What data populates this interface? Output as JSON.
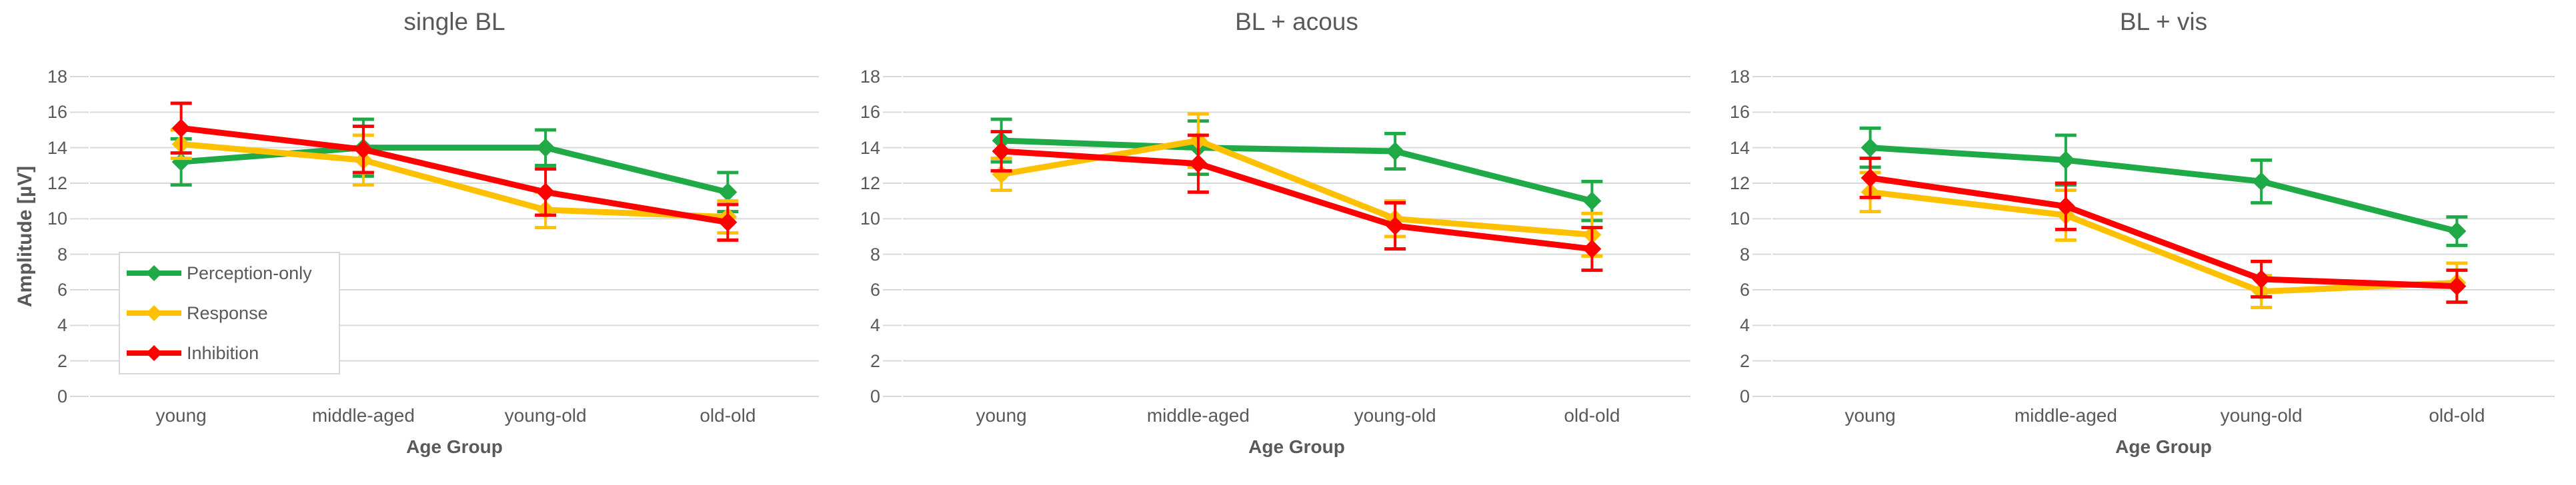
{
  "figure": {
    "background": "#ffffff",
    "text_color": "#595959",
    "gridline_color": "#D9D9D9"
  },
  "chart_data": [
    {
      "type": "line",
      "title": "single BL",
      "xlabel": "Age Group",
      "ylabel": "Amplitude [µV]",
      "categories": [
        "young",
        "middle-aged",
        "young-old",
        "old-old"
      ],
      "ylim": [
        0,
        18
      ],
      "yticks": [
        0,
        2,
        4,
        6,
        8,
        10,
        12,
        14,
        16,
        18
      ],
      "grid": true,
      "legend_position": "inside-left-bottom",
      "error_bars": true,
      "series": [
        {
          "name": "Perception-only",
          "color": "#1FAA47",
          "values": [
            13.2,
            14.0,
            14.0,
            11.5
          ],
          "errors": [
            1.3,
            1.6,
            1.0,
            1.1
          ]
        },
        {
          "name": "Response",
          "color": "#FFC000",
          "values": [
            14.2,
            13.3,
            10.5,
            10.1
          ],
          "errors": [
            0.8,
            1.4,
            1.0,
            0.9
          ]
        },
        {
          "name": "Inhibition",
          "color": "#FF0000",
          "values": [
            15.1,
            13.9,
            11.5,
            9.8
          ],
          "errors": [
            1.4,
            1.3,
            1.3,
            1.0
          ]
        }
      ]
    },
    {
      "type": "line",
      "title": "BL + acous",
      "xlabel": "Age Group",
      "ylabel": "",
      "categories": [
        "young",
        "middle-aged",
        "young-old",
        "old-old"
      ],
      "ylim": [
        0,
        18
      ],
      "yticks": [
        0,
        2,
        4,
        6,
        8,
        10,
        12,
        14,
        16,
        18
      ],
      "grid": true,
      "legend_position": "none",
      "error_bars": true,
      "series": [
        {
          "name": "Perception-only",
          "color": "#1FAA47",
          "values": [
            14.4,
            14.0,
            13.8,
            11.0
          ],
          "errors": [
            1.2,
            1.5,
            1.0,
            1.1
          ]
        },
        {
          "name": "Response",
          "color": "#FFC000",
          "values": [
            12.5,
            14.4,
            10.0,
            9.1
          ],
          "errors": [
            0.9,
            1.5,
            1.0,
            1.2
          ]
        },
        {
          "name": "Inhibition",
          "color": "#FF0000",
          "values": [
            13.8,
            13.1,
            9.6,
            8.3
          ],
          "errors": [
            1.1,
            1.6,
            1.3,
            1.2
          ]
        }
      ]
    },
    {
      "type": "line",
      "title": "BL + vis",
      "xlabel": "Age Group",
      "ylabel": "",
      "categories": [
        "young",
        "middle-aged",
        "young-old",
        "old-old"
      ],
      "ylim": [
        0,
        18
      ],
      "yticks": [
        0,
        2,
        4,
        6,
        8,
        10,
        12,
        14,
        16,
        18
      ],
      "grid": true,
      "legend_position": "none",
      "error_bars": true,
      "series": [
        {
          "name": "Perception-only",
          "color": "#1FAA47",
          "values": [
            14.0,
            13.3,
            12.1,
            9.3
          ],
          "errors": [
            1.1,
            1.4,
            1.2,
            0.8
          ]
        },
        {
          "name": "Response",
          "color": "#FFC000",
          "values": [
            11.5,
            10.2,
            5.9,
            6.4
          ],
          "errors": [
            1.1,
            1.4,
            0.9,
            1.1
          ]
        },
        {
          "name": "Inhibition",
          "color": "#FF0000",
          "values": [
            12.3,
            10.7,
            6.6,
            6.2
          ],
          "errors": [
            1.1,
            1.3,
            1.0,
            0.9
          ]
        }
      ]
    }
  ]
}
